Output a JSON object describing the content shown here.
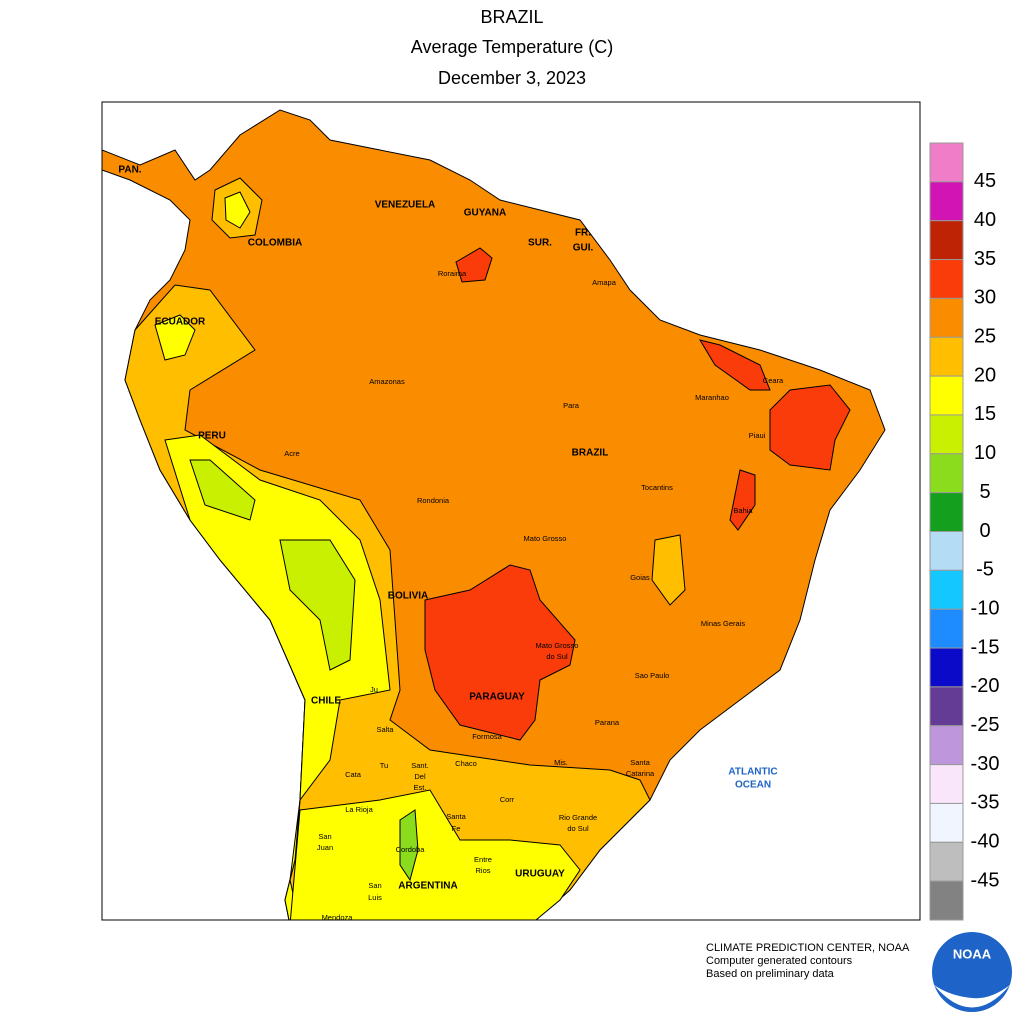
{
  "header": {
    "title": "BRAZIL",
    "subtitle": "Average Temperature (C)",
    "date": "December 3, 2023"
  },
  "labels": [
    "PAN.",
    "COLOMBIA",
    "VENEZUELA",
    "GUYANA",
    "SUR.",
    "FR.",
    "GUI.",
    "ECUADOR",
    "PERU",
    "BRAZIL",
    "BOLIVIA",
    "CHILE",
    "PARAGUAY",
    "ARGENTINA",
    "URUGUAY",
    "ATLANTIC",
    "OCEAN",
    "Roraima",
    "Amapa",
    "Amazonas",
    "Para",
    "Maranhao",
    "Ceara",
    "Piaui",
    "Acre",
    "Rondonia",
    "Tocantins",
    "Bahia",
    "Mato Grosso",
    "Goias",
    "Minas Gerais",
    "Mato Grosso",
    "do Sul",
    "Sao Paulo",
    "Parana",
    "Santa",
    "Catarina",
    "Rio Grande",
    "do Sul",
    "Mis.",
    "Corr",
    "Chaco",
    "Formosa",
    "Ju",
    "Salta",
    "Tu",
    "Cata",
    "Sant.",
    "Del",
    "Est.",
    "La Rioja",
    "Santa",
    "Fe",
    "San",
    "Juan",
    "Cordoba",
    "Entre",
    "Rios",
    "San",
    "Luis",
    "Mendoza"
  ],
  "legend": {
    "colors": [
      "#f07dc8",
      "#d214b4",
      "#be2305",
      "#fa3c0a",
      "#fa8c00",
      "#ffbe00",
      "#ffff00",
      "#c8f000",
      "#8cdc1e",
      "#14a01e",
      "#b4dcf5",
      "#14c8ff",
      "#1e8cff",
      "#0a0ac8",
      "#643c96",
      "#be96dc",
      "#fae6fa",
      "#f0f5ff",
      "#bebebe",
      "#828282"
    ],
    "ticks": [
      45,
      40,
      35,
      30,
      25,
      20,
      15,
      10,
      5,
      0,
      -5,
      -10,
      -15,
      -20,
      -25,
      -30,
      -35,
      -40,
      -45
    ]
  },
  "footer": {
    "lines": [
      "CLIMATE PREDICTION CENTER, NOAA",
      "Computer generated contours",
      "Based on preliminary data"
    ],
    "logo": "NOAA"
  }
}
